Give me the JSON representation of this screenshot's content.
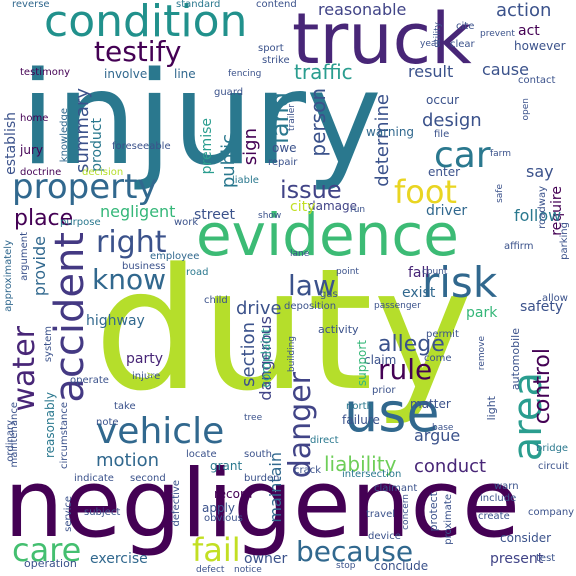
{
  "palette": {
    "background": "#ffffff",
    "purple": "#440154",
    "indigo": "#3b528b",
    "blue": "#31688e",
    "teal": "#21918c",
    "green": "#35b779",
    "lime": "#b5de2b"
  },
  "words": {
    "duty": "duty",
    "injury": "injury",
    "negligence": "negligence",
    "evidence": "evidence",
    "truck": "truck",
    "condition": "condition",
    "property": "property",
    "accident": "accident",
    "vehicle": "vehicle",
    "use": "use",
    "car": "car",
    "risk": "risk",
    "area": "area",
    "danger": "danger",
    "foot": "foot",
    "fail": "fail",
    "because": "because",
    "care": "care",
    "water": "water",
    "right": "right",
    "know": "know",
    "law": "law",
    "rule": "rule",
    "testify": "testify",
    "land": "land",
    "issue": "issue",
    "control": "control",
    "allege": "allege",
    "place": "place",
    "reasonable": "reasonable",
    "action": "action",
    "traffic": "traffic",
    "person": "person",
    "liability": "liability",
    "conduct": "conduct",
    "motion": "motion",
    "maintain": "maintain",
    "section": "section",
    "dangerous": "dangerous",
    "summary": "summary",
    "drive": "drive",
    "design": "design",
    "determine": "determine",
    "public": "public",
    "sign": "sign",
    "cause": "cause",
    "result": "result",
    "negligent": "negligent",
    "argue": "argue",
    "exercise": "exercise",
    "owner": "owner",
    "present": "present",
    "highway": "highway",
    "establish": "establish",
    "product": "product",
    "premise": "premise",
    "require": "require",
    "say": "say",
    "follow": "follow",
    "act": "act",
    "however": "however",
    "safety": "safety",
    "park": "park",
    "exist": "exist",
    "fall": "fall",
    "driver": "driver",
    "damage": "damage",
    "city": "city",
    "street": "street",
    "provide": "provide",
    "record": "record",
    "apply": "apply",
    "grant": "grant",
    "party": "party",
    "claim": "claim",
    "support": "support",
    "complaint": "complaint",
    "line": "line",
    "involve": "involve",
    "sport": "sport",
    "contend": "contend",
    "standard": "standard",
    "reverse": "reverse",
    "testimony": "testimony",
    "home": "home",
    "jury": "jury",
    "knowledge": "knowledge",
    "foreseeable": "foreseeable",
    "doctrine": "doctrine",
    "decision": "decision",
    "owe": "owe",
    "repair": "repair",
    "liable": "liable",
    "enter": "enter",
    "occur": "occur",
    "warning": "warning",
    "file": "file",
    "farm": "farm",
    "purpose": "purpose",
    "work": "work",
    "business": "business",
    "employee": "employee",
    "child": "child",
    "road": "road",
    "deposition": "deposition",
    "gas": "gas",
    "point": "point",
    "argument": "argument",
    "approximately": "approximately",
    "ordinary": "ordinary",
    "maintenance": "maintenance",
    "reasonably": "reasonably",
    "circumstance": "circumstance",
    "system": "system",
    "operate": "operate",
    "injure": "injure",
    "take": "take",
    "note": "note",
    "way": "way",
    "activity": "activity",
    "building": "building",
    "permit": "permit",
    "come": "come",
    "prior": "prior",
    "matter": "matter",
    "north": "north",
    "failure": "failure",
    "direct": "direct",
    "tree": "tree",
    "locate": "locate",
    "south": "south",
    "crack": "crack",
    "burden": "burden",
    "second": "second",
    "indicate": "indicate",
    "defective": "defective",
    "obvious": "obvious",
    "service": "service",
    "subject": "subject",
    "intersection": "intersection",
    "claimant": "claimant",
    "travel": "travel",
    "device": "device",
    "protect": "protect",
    "concern": "concern",
    "proximate": "proximate",
    "create": "create",
    "consider": "consider",
    "company": "company",
    "include": "include",
    "warn": "warn",
    "circuit": "circuit",
    "bridge": "bridge",
    "allow": "allow",
    "parking": "parking",
    "affirm": "affirm",
    "roadway": "roadway",
    "safe": "safe",
    "base": "base",
    "test": "test",
    "light": "light",
    "automobile": "automobile",
    "remove": "remove",
    "operation": "operation",
    "notice": "notice",
    "defect": "defect",
    "stop": "stop",
    "conclude": "conclude",
    "guard": "guard",
    "issue_small": "issue",
    "trailer": "trailer",
    "fencing": "fencing",
    "strike": "strike",
    "cite": "cite",
    "clear": "clear",
    "prevent": "prevent",
    "contact": "contact",
    "open": "open",
    "utility": "utility",
    "year": "year",
    "set": "set",
    "run": "run",
    "show": "show",
    "lane": "lane",
    "count": "count",
    "passenger": "passenger",
    "order": "order",
    "power": "power",
    "lot": "lot",
    "case": "case",
    "fact": "fact",
    "court": "court"
  }
}
